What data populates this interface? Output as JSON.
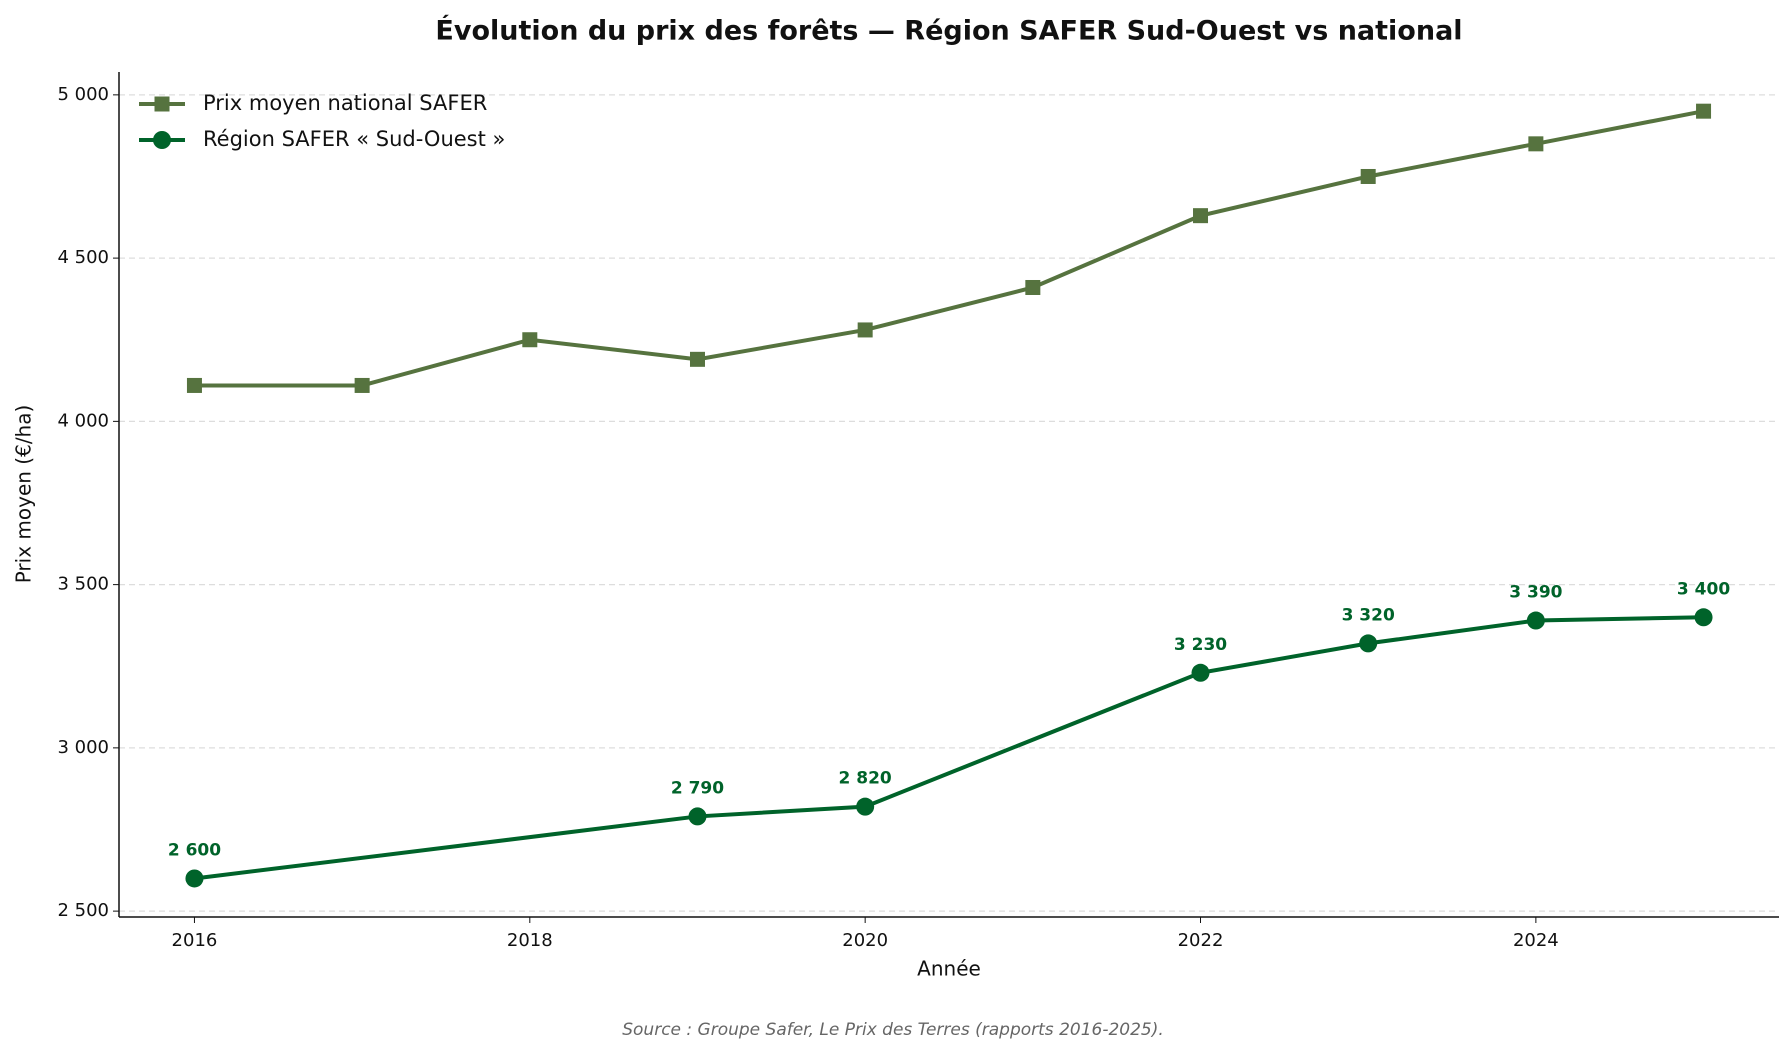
{
  "chart_data": {
    "type": "line",
    "title": "Évolution du prix des forêts — Région SAFER Sud-Ouest vs national",
    "x_label": "Année",
    "y_label": "Prix moyen (€/ha)",
    "source": "Source : Groupe Safer, Le Prix des Terres (rapports 2016-2025).",
    "series": [
      {
        "name": "Prix moyen national SAFER",
        "color": "#56733f",
        "marker": "square",
        "x": [
          2016,
          2017,
          2018,
          2019,
          2020,
          2021,
          2022,
          2023,
          2024,
          2025
        ],
        "values": [
          4110,
          4110,
          4250,
          4190,
          4280,
          4410,
          4630,
          4750,
          4850,
          4950
        ]
      },
      {
        "name": "Région SAFER « Sud-Ouest »",
        "color": "#00632a",
        "marker": "circle",
        "x": [
          2016,
          2019,
          2020,
          2022,
          2023,
          2024,
          2025
        ],
        "values": [
          2600,
          2790,
          2820,
          3230,
          3320,
          3390,
          3400
        ],
        "value_labels": [
          "2 600",
          "2 790",
          "2 820",
          "3 230",
          "3 320",
          "3 390",
          "3 400"
        ]
      }
    ],
    "xlim": [
      2015.55,
      2025.45
    ],
    "xticks": [
      2016,
      2018,
      2020,
      2022,
      2024
    ],
    "ylim": [
      2482,
      5070
    ],
    "yticks": [
      {
        "value": 2500,
        "label": "2 500"
      },
      {
        "value": 3000,
        "label": "3 000"
      },
      {
        "value": 3500,
        "label": "3 500"
      },
      {
        "value": 4000,
        "label": "4 000"
      },
      {
        "value": 4500,
        "label": "4 500"
      },
      {
        "value": 5000,
        "label": "5 000"
      }
    ],
    "grid": true,
    "legend": "upper left"
  }
}
